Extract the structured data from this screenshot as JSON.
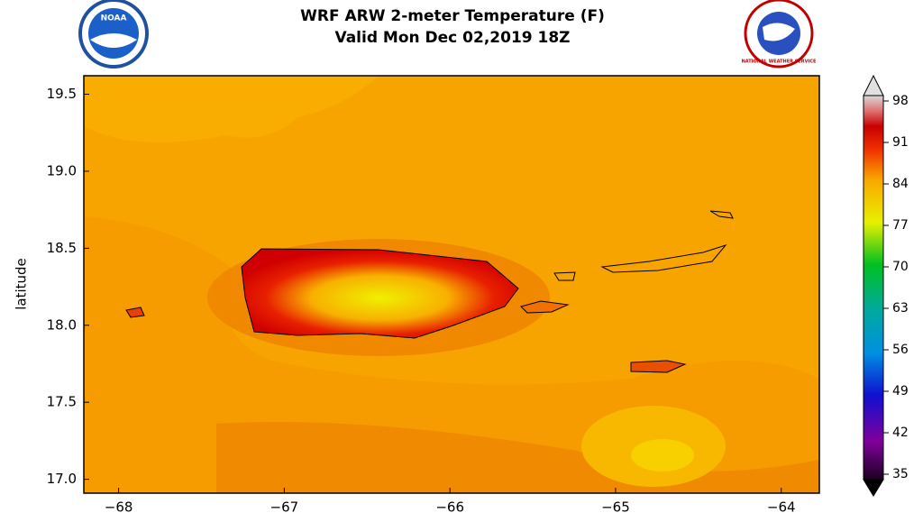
{
  "header": {
    "title": "WRF ARW 2-meter Temperature (F)",
    "subtitle": "Valid Mon Dec 02,2019 18Z",
    "logo_left": "NOAA",
    "logo_right": "NATIONAL WEATHER SERVICE"
  },
  "map": {
    "ylabel": "latitude",
    "xlim": [
      -68.21,
      -63.77
    ],
    "ylim": [
      16.91,
      19.62
    ],
    "xticks": [
      {
        "value": -68,
        "label": "−68"
      },
      {
        "value": -67,
        "label": "−67"
      },
      {
        "value": -66,
        "label": "−66"
      },
      {
        "value": -65,
        "label": "−65"
      },
      {
        "value": -64,
        "label": "−64"
      }
    ],
    "yticks": [
      {
        "value": 17,
        "label": "17.0"
      },
      17.5,
      {
        "value": 18,
        "label": "18.0"
      },
      18.5,
      {
        "value": 19,
        "label": "19.0"
      },
      19.5
    ]
  },
  "colorbar": {
    "range": [
      35,
      98
    ],
    "ticks": [
      35,
      42,
      49,
      56,
      63,
      70,
      77,
      84,
      91,
      98
    ]
  }
}
